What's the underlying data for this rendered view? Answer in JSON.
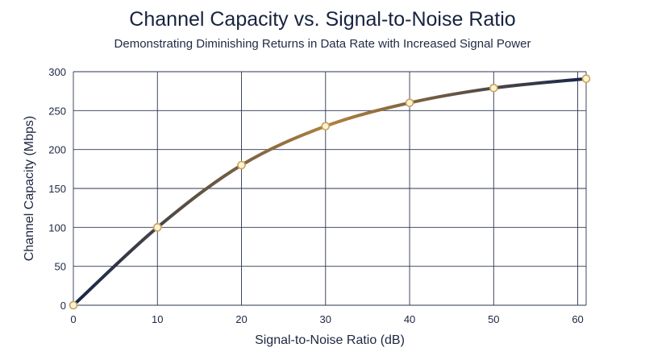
{
  "chart": {
    "title": "Channel Capacity vs. Signal-to-Noise Ratio",
    "subtitle": "Demonstrating Diminishing Returns in Data Rate with Increased Signal Power"
  },
  "colors": {
    "line_start": "#15264a",
    "line_mid": "#b0813e",
    "line_end": "#15264a",
    "marker_fill": "#fdf3d2",
    "marker_stroke": "#c9a25a",
    "grid": "#2c3550",
    "text": "#1c2742"
  },
  "chart_data": {
    "type": "line",
    "title": "Channel Capacity vs. Signal-to-Noise Ratio",
    "subtitle": "Demonstrating Diminishing Returns in Data Rate with Increased Signal Power",
    "xlabel": "Signal-to-Noise Ratio (dB)",
    "ylabel": "Channel Capacity (Mbps)",
    "xlim": [
      0,
      61
    ],
    "ylim": [
      0,
      300
    ],
    "xticks": [
      0,
      10,
      20,
      30,
      40,
      50,
      60
    ],
    "yticks": [
      0,
      50,
      100,
      150,
      200,
      250,
      300
    ],
    "grid": true,
    "legend": "none",
    "series": [
      {
        "x": [
          0,
          10,
          20,
          30,
          40,
          50,
          61
        ],
        "y": [
          0,
          100,
          180,
          230,
          260,
          279,
          291
        ]
      }
    ]
  }
}
